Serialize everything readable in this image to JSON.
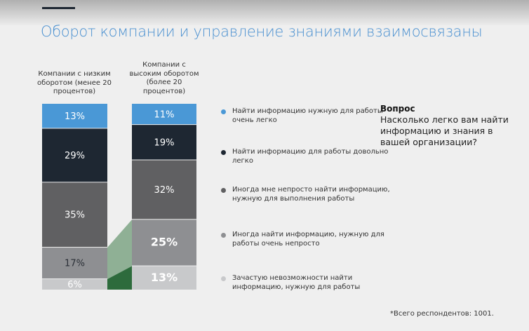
{
  "title": "Оборот компании и управление знаниями взаимосвязаны",
  "chart_data": {
    "type": "bar",
    "stacked": true,
    "categories": [
      "Компании с низким оборотом (менее 20 процентов)",
      "Компании с высоким оборотом (более 20 процентов)"
    ],
    "series": [
      {
        "name": "Найти информацию нужную для работы очень легко",
        "color": "#4a98d6",
        "values": [
          13,
          11
        ],
        "labels": [
          "13%",
          "11%"
        ]
      },
      {
        "name": "Найти информацию для работы довольно легко",
        "color": "#1e2732",
        "values": [
          29,
          19
        ],
        "labels": [
          "29%",
          "19%"
        ]
      },
      {
        "name": "Иногда мне непросто найти информацию, нужную для выполнения работы",
        "color": "#606062",
        "values": [
          35,
          32
        ],
        "labels": [
          "35%",
          "32%"
        ]
      },
      {
        "name": "Иногда найти информацию, нужную для работы очень непросто",
        "color": "#8e8f92",
        "values": [
          17,
          25
        ],
        "labels": [
          "17%",
          "25%"
        ]
      },
      {
        "name": "Зачастую невозможности найти информацию, нужную для работы",
        "color": "#c8c9cb",
        "values": [
          6,
          13
        ],
        "labels": [
          "6%",
          "13%"
        ]
      }
    ],
    "connector_colors": [
      "#8fb095",
      "#2d6b3c"
    ]
  },
  "question": {
    "heading": "Вопрос",
    "text": "Насколько легко вам найти информацию и знания в вашей организации?"
  },
  "footnote": "*Всего респондентов: 1001."
}
